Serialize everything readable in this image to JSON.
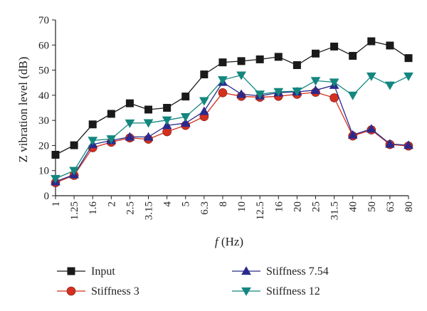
{
  "chart_data": {
    "type": "line",
    "title": "",
    "xlabel_italic": "f",
    "xlabel_rest": " (Hz)",
    "ylabel": "Z vibration level (dB)",
    "ylim": [
      0,
      70
    ],
    "yticks": [
      "0",
      "10",
      "20",
      "30",
      "40",
      "50",
      "60",
      "70"
    ],
    "categories": [
      "1",
      "1.25",
      "1.6",
      "2",
      "2.5",
      "3.15",
      "4",
      "5",
      "6.3",
      "8",
      "10",
      "12.5",
      "16",
      "20",
      "25",
      "31.5",
      "40",
      "50",
      "63",
      "80"
    ],
    "grid": false,
    "legend_position": "bottom",
    "series": [
      {
        "name": "Input",
        "marker": "square",
        "color": "#1a1a1a",
        "values": [
          16.3,
          20.1,
          28.4,
          32.6,
          36.8,
          34.3,
          35.0,
          39.5,
          48.3,
          53.1,
          53.6,
          54.3,
          55.3,
          52.0,
          56.6,
          59.4,
          55.7,
          61.5,
          59.8,
          54.8
        ]
      },
      {
        "name": "Stiffness 3",
        "marker": "circle",
        "color": "#d32f1e",
        "values": [
          5.2,
          8.1,
          19.1,
          21.3,
          23.0,
          22.5,
          25.5,
          28.0,
          31.5,
          41.0,
          39.6,
          39.2,
          39.6,
          40.4,
          41.2,
          39.0,
          23.8,
          26.2,
          20.4,
          19.8
        ]
      },
      {
        "name": "Stiffness 7.54",
        "marker": "triangle-up",
        "color": "#2a2a8c",
        "values": [
          5.6,
          8.4,
          20.4,
          22.0,
          23.4,
          23.4,
          28.0,
          28.9,
          33.6,
          45.2,
          40.4,
          39.8,
          41.0,
          41.4,
          42.0,
          44.0,
          24.2,
          26.6,
          20.6,
          20.1
        ]
      },
      {
        "name": "Stiffness 12",
        "marker": "triangle-down",
        "color": "#13877f",
        "values": [
          6.8,
          10.0,
          22.0,
          22.6,
          28.9,
          29.0,
          30.1,
          31.4,
          37.8,
          46.1,
          48.0,
          40.4,
          41.4,
          41.6,
          45.8,
          45.2,
          40.0,
          47.6,
          44.0,
          47.6
        ]
      }
    ]
  }
}
